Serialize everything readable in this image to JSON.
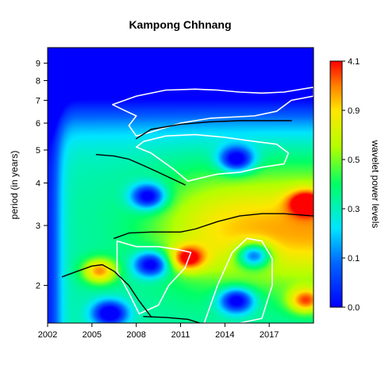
{
  "chart_data": {
    "type": "heatmap",
    "title": "Kampong Chhnang",
    "ylabel": "period (in years)",
    "xlabel": "",
    "x_ticks": [
      "2002",
      "2005",
      "2008",
      "2011",
      "2014",
      "2017"
    ],
    "x_tick_values": [
      2002,
      2005,
      2008,
      2011,
      2014,
      2017
    ],
    "xlim": [
      2002,
      2020
    ],
    "y_scale": "log2",
    "y_ticks": [
      "2",
      "3",
      "4",
      "5",
      "6",
      "7",
      "8",
      "9"
    ],
    "y_tick_values": [
      2,
      3,
      4,
      5,
      6,
      7,
      8,
      9
    ],
    "ylim": [
      1.55,
      10
    ],
    "colorbar": {
      "label": "wavelet power levels",
      "tick_labels": [
        "0.0",
        "0.1",
        "0.3",
        "0.5",
        "0.9",
        "4.1"
      ],
      "colors": [
        "#0000ff",
        "#00e5ff",
        "#00ff66",
        "#b3ff00",
        "#ffe600",
        "#ff0000"
      ]
    },
    "power_peaks": [
      {
        "x": 2014.8,
        "y": 4.7,
        "level": "low"
      },
      {
        "x": 2008.8,
        "y": 3.65,
        "level": "low"
      },
      {
        "x": 2009.0,
        "y": 2.3,
        "level": "low"
      },
      {
        "x": 2006.2,
        "y": 1.65,
        "level": "low"
      },
      {
        "x": 2014.8,
        "y": 1.8,
        "level": "low"
      },
      {
        "x": 2016.0,
        "y": 2.45,
        "level": "low"
      },
      {
        "x": 2019.5,
        "y": 3.5,
        "level": "high"
      },
      {
        "x": 2019.5,
        "y": 1.8,
        "level": "high"
      },
      {
        "x": 2011.5,
        "y": 2.4,
        "level": "high"
      },
      {
        "x": 2005.5,
        "y": 2.2,
        "level": "high"
      }
    ],
    "ridge_lines": [
      {
        "x": [
          2008.0,
          2009.0,
          2011.0,
          2013.0,
          2015.0,
          2017.0,
          2018.5
        ],
        "y": [
          5.4,
          5.75,
          5.95,
          6.05,
          6.1,
          6.1,
          6.1
        ]
      },
      {
        "x": [
          2005.3,
          2006.5,
          2007.5,
          2008.5,
          2009.5,
          2010.5,
          2011.3
        ],
        "y": [
          4.85,
          4.8,
          4.7,
          4.5,
          4.3,
          4.1,
          3.95
        ]
      },
      {
        "x": [
          2003.0,
          2004.0,
          2005.0,
          2005.7,
          2006.5,
          2007.5,
          2008.2,
          2009.0
        ],
        "y": [
          2.12,
          2.2,
          2.28,
          2.3,
          2.2,
          2.0,
          1.8,
          1.62
        ]
      },
      {
        "x": [
          2008.5,
          2010.0,
          2011.5,
          2012.3,
          2013.0
        ],
        "y": [
          1.62,
          1.61,
          1.59,
          1.55,
          1.5
        ]
      },
      {
        "x": [
          2006.5,
          2007.5,
          2009.0,
          2011.0,
          2012.0,
          2013.5,
          2015.0,
          2016.5,
          2018.0,
          2020.0
        ],
        "y": [
          2.75,
          2.85,
          2.87,
          2.87,
          2.93,
          3.08,
          3.2,
          3.25,
          3.25,
          3.2
        ]
      }
    ],
    "significance_contours": [
      {
        "x": [
          2006.4,
          2008.0,
          2010.0,
          2012.0,
          2013.5,
          2015.0,
          2016.5,
          2018.0,
          2020.0,
          2020.0,
          2018.5,
          2017.5,
          2016.0,
          2014.5,
          2013.0,
          2011.0,
          2009.0,
          2008.0,
          2007.5,
          2008.0,
          2007.0,
          2006.4
        ],
        "y": [
          6.8,
          7.2,
          7.5,
          7.55,
          7.5,
          7.4,
          7.35,
          7.4,
          7.65,
          7.2,
          7.0,
          6.5,
          6.3,
          6.25,
          6.2,
          6.0,
          5.65,
          5.5,
          5.9,
          6.3,
          6.6,
          6.8
        ]
      },
      {
        "x": [
          2008.5,
          2010.0,
          2012.0,
          2014.0,
          2016.0,
          2017.5,
          2018.3,
          2018.0,
          2016.5,
          2015.0,
          2013.5,
          2012.5,
          2011.5,
          2010.5,
          2009.0,
          2008.0,
          2008.5
        ],
        "y": [
          5.3,
          5.5,
          5.55,
          5.45,
          5.3,
          5.2,
          4.9,
          4.55,
          4.45,
          4.3,
          4.25,
          4.15,
          4.05,
          4.4,
          4.9,
          5.1,
          5.3
        ]
      },
      {
        "x": [
          2006.7,
          2008.0,
          2009.5,
          2010.8,
          2011.7,
          2011.3,
          2010.2,
          2009.5,
          2008.2,
          2007.5,
          2006.7,
          2006.7
        ],
        "y": [
          2.7,
          2.6,
          2.6,
          2.55,
          2.5,
          2.25,
          2.0,
          1.75,
          1.65,
          1.9,
          2.2,
          2.7
        ]
      },
      {
        "x": [
          2012.6,
          2013.5,
          2014.5,
          2015.5,
          2016.5,
          2017.2,
          2017.2,
          2016.5,
          2015.0,
          2013.5,
          2012.8,
          2012.6
        ],
        "y": [
          1.55,
          2.0,
          2.5,
          2.75,
          2.7,
          2.4,
          2.0,
          1.6,
          1.55,
          1.55,
          1.55,
          1.55
        ]
      }
    ]
  }
}
